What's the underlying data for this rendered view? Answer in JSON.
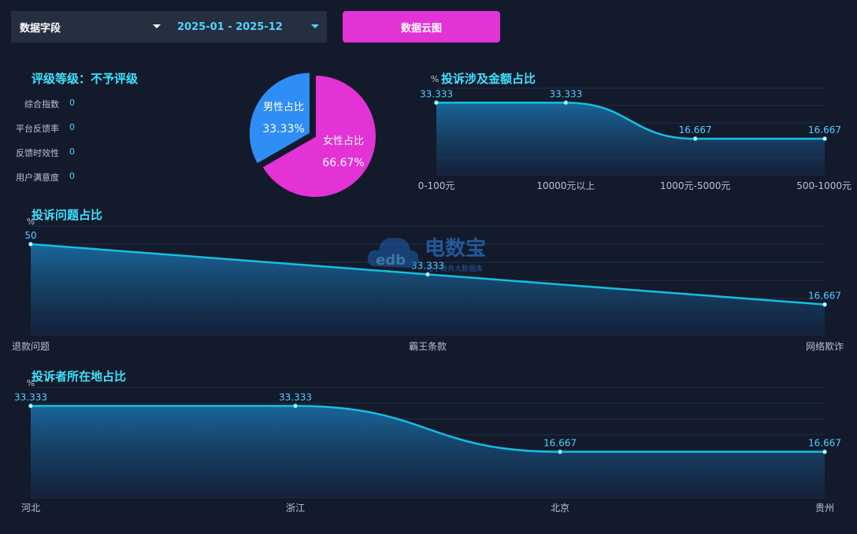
{
  "toolbar": {
    "field_select": "数据字段",
    "date_select": "2025-01 - 2025-12",
    "cloud_button": "数据云图"
  },
  "rating": {
    "title": "评级等级：不予评级",
    "metrics": [
      {
        "label": "综合指数",
        "value": "0"
      },
      {
        "label": "平台反馈率",
        "value": "0"
      },
      {
        "label": "反馈时效性",
        "value": "0"
      },
      {
        "label": "用户满意度",
        "value": "0"
      }
    ]
  },
  "watermark": {
    "text": "电数宝",
    "subtext": "电子商务大数据库"
  },
  "colors": {
    "accent": "#3fe3ff",
    "pink": "#e332d6",
    "blue": "#2f8ef5",
    "line": "#14c0e0"
  },
  "chart_data": [
    {
      "type": "pie",
      "slices": [
        {
          "label": "男性占比",
          "value": 33.33,
          "display": "33.33%",
          "color": "#2f8ef5"
        },
        {
          "label": "女性占比",
          "value": 66.67,
          "display": "66.67%",
          "color": "#e332d6"
        }
      ]
    },
    {
      "type": "area",
      "title": "投诉涉及金额占比",
      "ylabel": "%",
      "categories": [
        "0-100元",
        "10000元以上",
        "1000元-5000元",
        "500-1000元"
      ],
      "values": [
        33.333,
        33.333,
        16.667,
        16.667
      ],
      "value_labels": [
        "33.333",
        "33.333",
        "16.667",
        "16.667"
      ],
      "ylim": [
        0,
        40
      ],
      "grid": true
    },
    {
      "type": "area",
      "title": "投诉问题占比",
      "ylabel": "%",
      "categories": [
        "退款问题",
        "霸王条款",
        "网络欺诈"
      ],
      "values": [
        50,
        33.333,
        16.667
      ],
      "value_labels": [
        "50",
        "33.333",
        "16.667"
      ],
      "ylim": [
        0,
        60
      ],
      "grid": true
    },
    {
      "type": "area",
      "title": "投诉者所在地占比",
      "ylabel": "%",
      "categories": [
        "河北",
        "浙江",
        "北京",
        "贵州"
      ],
      "values": [
        33.333,
        33.333,
        16.667,
        16.667
      ],
      "value_labels": [
        "33.333",
        "33.333",
        "16.667",
        "16.667"
      ],
      "ylim": [
        0,
        40
      ],
      "grid": true
    }
  ]
}
